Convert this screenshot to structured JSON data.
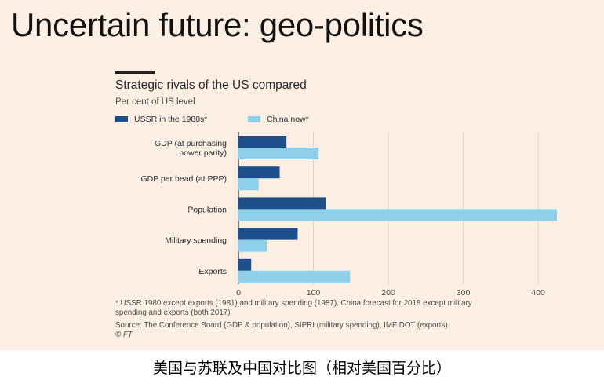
{
  "slide": {
    "title": "Uncertain future: geo-politics"
  },
  "colors": {
    "background": "#fbeee2",
    "ussr": "#1e4f8c",
    "china": "#8ed0ea",
    "grid": "#e0d6cc",
    "axis": "#262a33"
  },
  "legend": {
    "ussr_label": "USSR in the 1980s*",
    "china_label": "China now*"
  },
  "chart_data": {
    "type": "bar",
    "orientation": "horizontal",
    "title": "Strategic rivals of the US compared",
    "subtitle": "Per cent of US level",
    "categories": [
      [
        "GDP (at purchasing",
        "power parity)"
      ],
      [
        "GDP per head (at PPP)"
      ],
      [
        "Population"
      ],
      [
        "Military spending"
      ],
      [
        "Exports"
      ]
    ],
    "series": [
      {
        "name": "USSR in the 1980s*",
        "values": [
          64,
          55,
          117,
          79,
          17
        ]
      },
      {
        "name": "China now*",
        "values": [
          107,
          27,
          425,
          38,
          149
        ]
      }
    ],
    "xlim": [
      0,
      425
    ],
    "xticks": [
      "0",
      "100",
      "200",
      "300",
      "400"
    ],
    "grid": true,
    "legend_position": "top-left"
  },
  "notes": {
    "footnote_line1": "* USSR 1980 except exports (1981) and military spending (1987). China forecast for 2018 except military",
    "footnote_line2": "spending and exports (both 2017)",
    "source": "Source: The Conference Board (GDP & population), SIPRI (military spending), IMF DOT (exports)",
    "credit": "© FT"
  },
  "caption": "美国与苏联及中国对比图（相对美国百分比）"
}
